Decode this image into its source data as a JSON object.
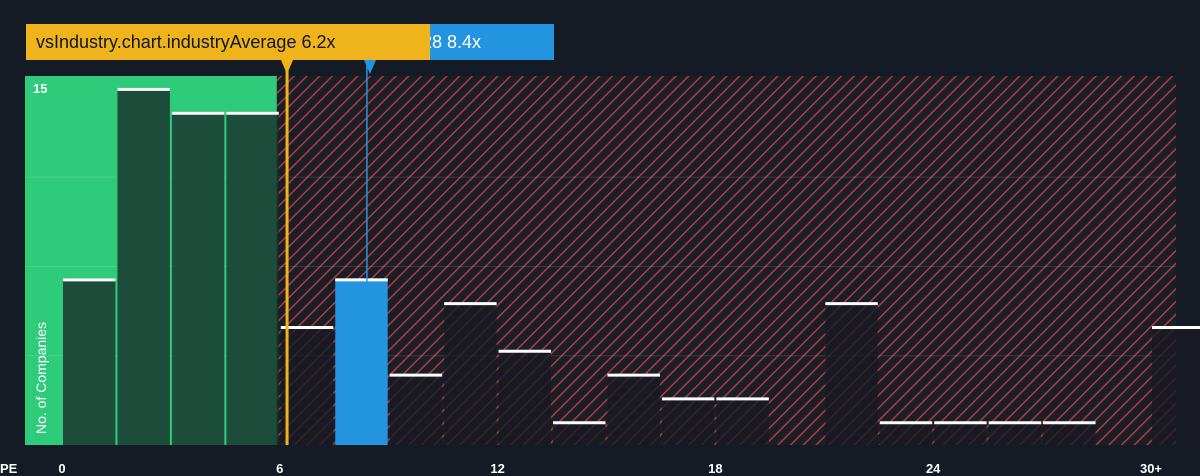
{
  "colors": {
    "background": "#151b24",
    "fair_zone": "#2ecc7a",
    "over_zone": "#b23a3f",
    "company_bar": "#2394e0",
    "industry_marker": "#efb31b",
    "bar_dark": "#1f4a3f"
  },
  "badges": {
    "industry_text": "vsIndustry.chart.industryAverage 6.2x",
    "company_text": "28 8.4x"
  },
  "chart_data": {
    "type": "bar",
    "x_axis_label": "PE",
    "y_axis_label": "No. of Companies",
    "x_tick_labels": [
      "0",
      "6",
      "12",
      "18",
      "24",
      "30+"
    ],
    "x_ticks": [
      0,
      6,
      12,
      18,
      24,
      30
    ],
    "y_tick_labels": [
      "15"
    ],
    "y_ticks": [
      15
    ],
    "xlim": [
      0,
      31
    ],
    "ylim": [
      0,
      15.5
    ],
    "bin_width": 1.5,
    "bins": [
      {
        "x0": 0,
        "count": 7
      },
      {
        "x0": 1.5,
        "count": 15
      },
      {
        "x0": 3,
        "count": 14
      },
      {
        "x0": 4.5,
        "count": 14
      },
      {
        "x0": 6,
        "count": 5
      },
      {
        "x0": 7.5,
        "count": 7,
        "highlight": true
      },
      {
        "x0": 9,
        "count": 3
      },
      {
        "x0": 10.5,
        "count": 6
      },
      {
        "x0": 12,
        "count": 4
      },
      {
        "x0": 13.5,
        "count": 1
      },
      {
        "x0": 15,
        "count": 3
      },
      {
        "x0": 16.5,
        "count": 2
      },
      {
        "x0": 18,
        "count": 2
      },
      {
        "x0": 19.5,
        "count": 0
      },
      {
        "x0": 21,
        "count": 6
      },
      {
        "x0": 22.5,
        "count": 1
      },
      {
        "x0": 24,
        "count": 1
      },
      {
        "x0": 25.5,
        "count": 1
      },
      {
        "x0": 27,
        "count": 1
      },
      {
        "x0": 28.5,
        "count": 0
      },
      {
        "x0": 30,
        "count": 5
      }
    ],
    "industry_average": 6.2,
    "company_value": 8.4,
    "fair_zone_max": 6
  }
}
